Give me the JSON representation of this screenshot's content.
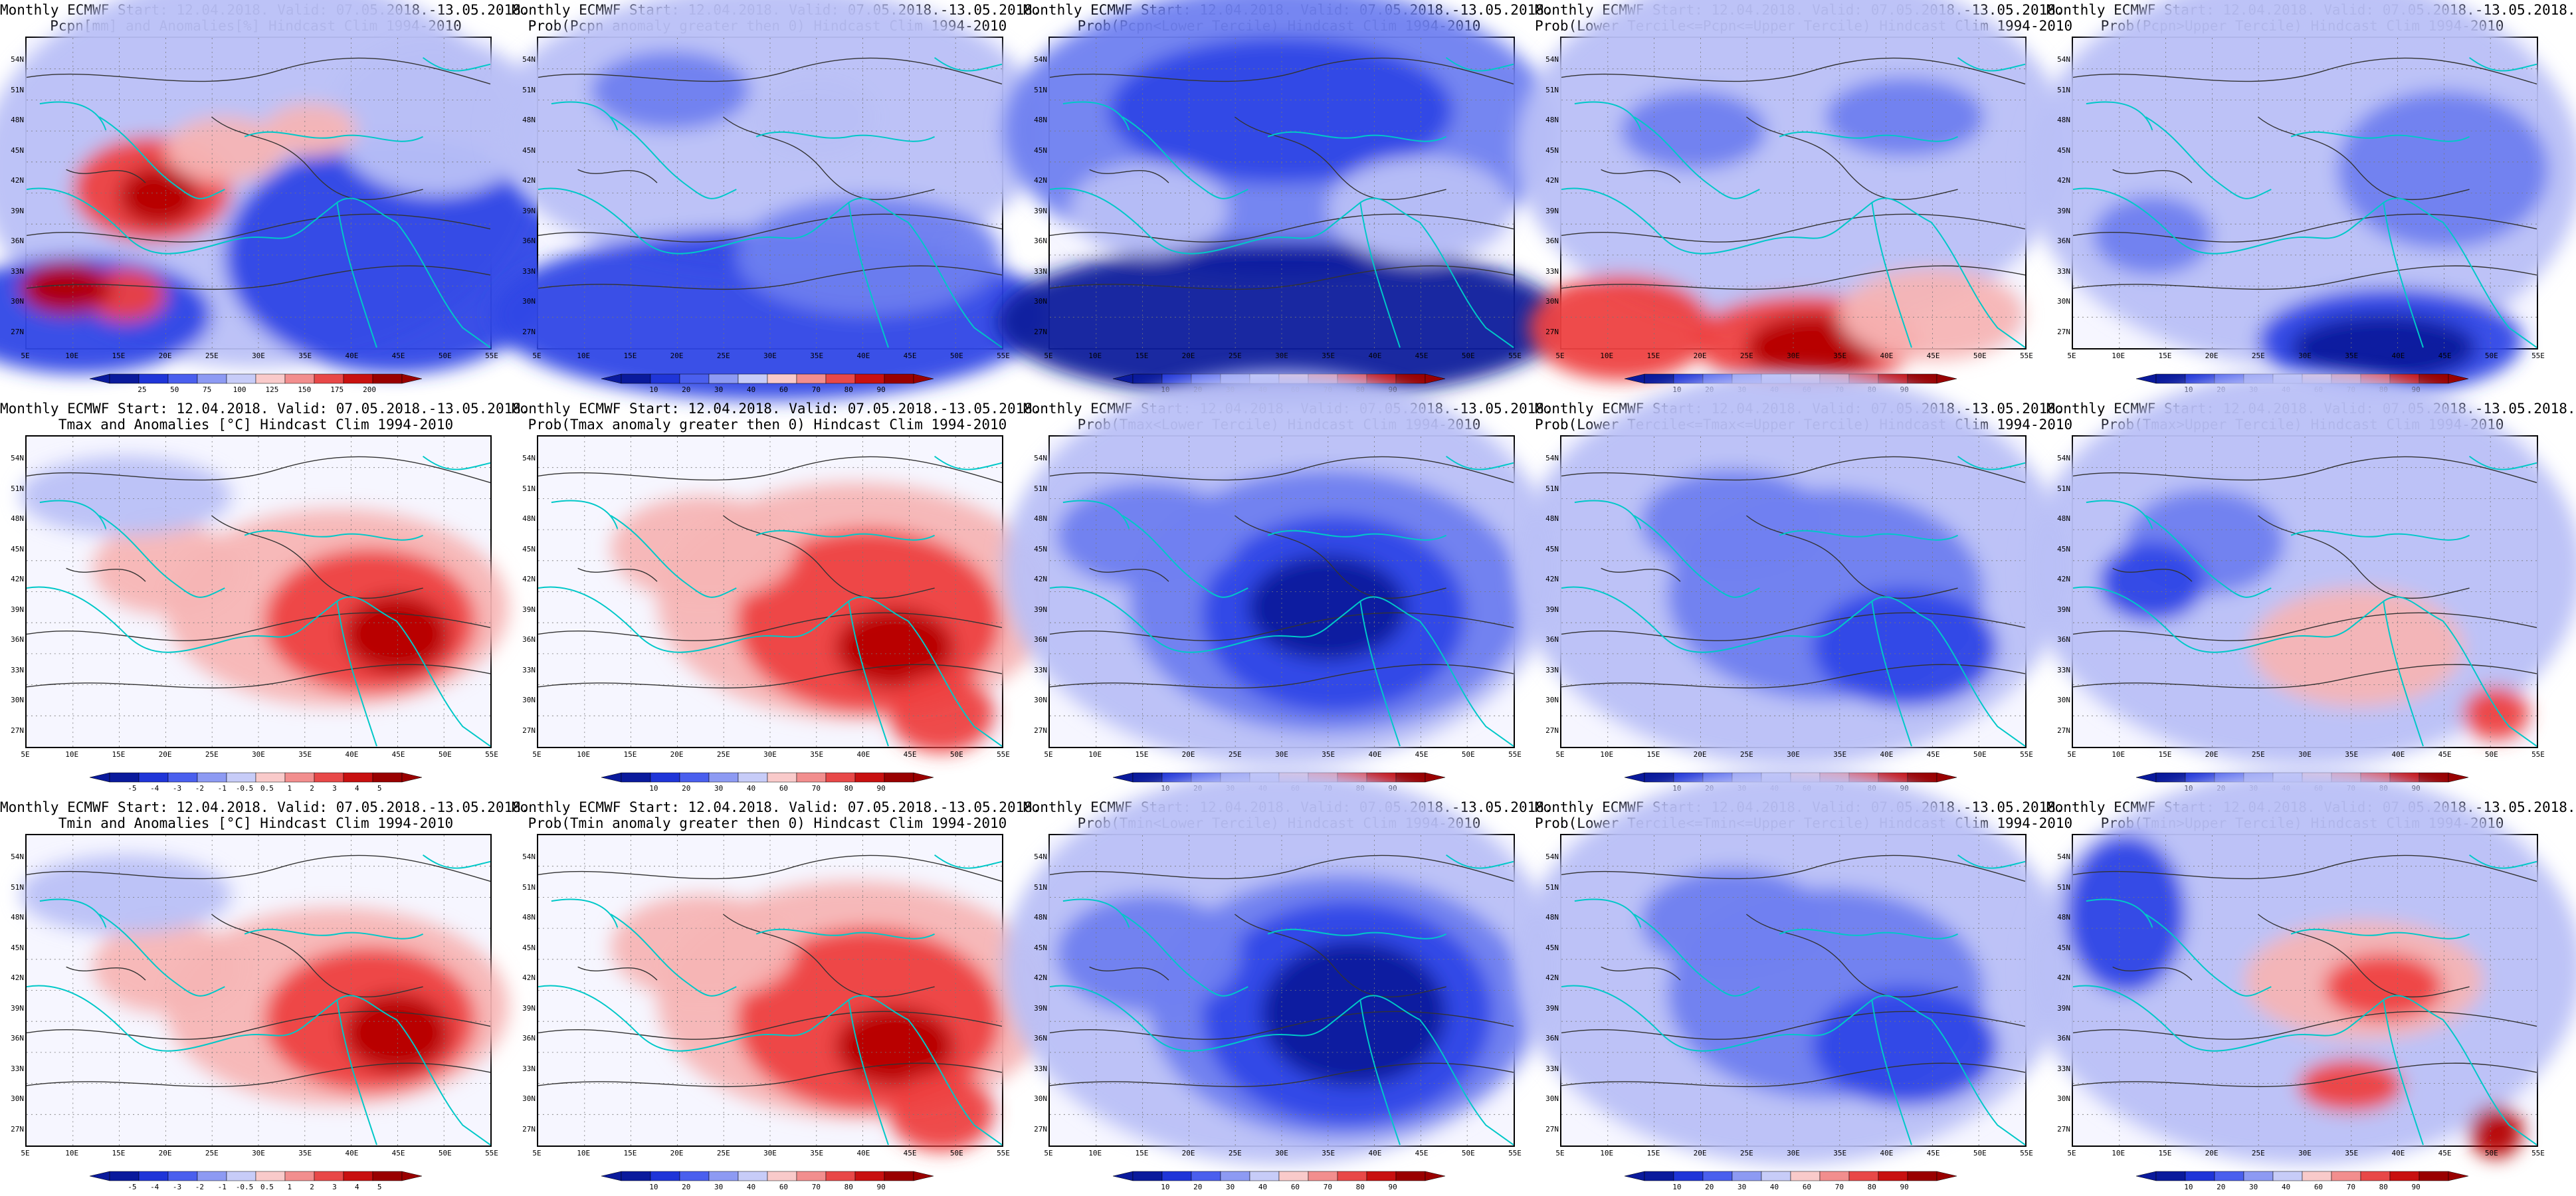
{
  "lat_labels": [
    "54N",
    "51N",
    "48N",
    "45N",
    "42N",
    "39N",
    "36N",
    "33N",
    "30N",
    "27N"
  ],
  "lon_labels": [
    "5E",
    "10E",
    "15E",
    "20E",
    "25E",
    "30E",
    "35E",
    "40E",
    "45E",
    "50E",
    "55E"
  ],
  "colors": {
    "blue_dark": "#0a1a9c",
    "blue": "#2f46e6",
    "blue_mid": "#6f7ff0",
    "blue_light": "#b9c0f7",
    "red_light": "#f7b5b5",
    "red": "#ee4040",
    "red_dark": "#b50000",
    "coast": "#00c8c8",
    "contour": "#333333"
  },
  "scales": {
    "pcpn": [
      "25",
      "50",
      "75",
      "100",
      "125",
      "150",
      "175",
      "200"
    ],
    "prob": [
      "10",
      "20",
      "30",
      "40",
      "60",
      "70",
      "80",
      "90"
    ],
    "temp": [
      "-5",
      "-4",
      "-3",
      "-2",
      "-1",
      "-0.5",
      "0.5",
      "1",
      "2",
      "3",
      "4",
      "5"
    ]
  },
  "panels": [
    {
      "title1": "Monthly ECMWF Start: 12.04.2018. Valid: 07.05.2018.-13.05.2018.",
      "title2": "Pcpn[mm] and Anomalies[%] Hindcast Clim 1994-2010",
      "scale": "pcpn",
      "field": "pcpn_anom"
    },
    {
      "title1": "Monthly ECMWF Start: 12.04.2018. Valid: 07.05.2018.-13.05.2018.",
      "title2": "Prob(Pcpn anomaly greater then 0) Hindcast Clim 1994-2010",
      "scale": "prob",
      "field": "pcpn_pos"
    },
    {
      "title1": "Monthly ECMWF Start: 12.04.2018. Valid: 07.05.2018.-13.05.2018.",
      "title2": "Prob(Pcpn<Lower Tercile) Hindcast Clim 1994-2010",
      "scale": "prob",
      "field": "pcpn_low"
    },
    {
      "title1": "Monthly ECMWF Start: 12.04.2018. Valid: 07.05.2018.-13.05.2018.",
      "title2": "Prob(Lower Tercile<=Pcpn<=Upper Tercile) Hindcast Clim 1994-2010",
      "scale": "prob",
      "field": "pcpn_mid"
    },
    {
      "title1": "Monthly ECMWF Start: 12.04.2018. Valid: 07.05.2018.-13.05.2018.",
      "title2": "Prob(Pcpn>Upper Tercile) Hindcast Clim 1994-2010",
      "scale": "prob",
      "field": "pcpn_up"
    },
    {
      "title1": "Monthly ECMWF Start: 12.04.2018. Valid: 07.05.2018.-13.05.2018.",
      "title2": "Tmax and Anomalies [°C] Hindcast Clim 1994-2010",
      "scale": "temp",
      "field": "t_anom"
    },
    {
      "title1": "Monthly ECMWF Start: 12.04.2018. Valid: 07.05.2018.-13.05.2018.",
      "title2": "Prob(Tmax anomaly greater then 0) Hindcast Clim 1994-2010",
      "scale": "prob",
      "field": "t_pos"
    },
    {
      "title1": "Monthly ECMWF Start: 12.04.2018. Valid: 07.05.2018.-13.05.2018.",
      "title2": "Prob(Tmax<Lower Tercile) Hindcast Clim 1994-2010",
      "scale": "prob",
      "field": "t_low"
    },
    {
      "title1": "Monthly ECMWF Start: 12.04.2018. Valid: 07.05.2018.-13.05.2018.",
      "title2": "Prob(Lower Tercile<=Tmax<=Upper Tercile) Hindcast Clim 1994-2010",
      "scale": "prob",
      "field": "t_mid"
    },
    {
      "title1": "Monthly ECMWF Start: 12.04.2018. Valid: 07.05.2018.-13.05.2018.",
      "title2": "Prob(Tmax>Upper Tercile) Hindcast Clim 1994-2010",
      "scale": "prob",
      "field": "t_up"
    },
    {
      "title1": "Monthly ECMWF Start: 12.04.2018. Valid: 07.05.2018.-13.05.2018.",
      "title2": "Tmin and Anomalies [°C] Hindcast Clim 1994-2010",
      "scale": "temp",
      "field": "t_anom"
    },
    {
      "title1": "Monthly ECMWF Start: 12.04.2018. Valid: 07.05.2018.-13.05.2018.",
      "title2": "Prob(Tmin anomaly greater then 0) Hindcast Clim 1994-2010",
      "scale": "prob",
      "field": "t_pos"
    },
    {
      "title1": "Monthly ECMWF Start: 12.04.2018. Valid: 07.05.2018.-13.05.2018.",
      "title2": "Prob(Tmin<Lower Tercile) Hindcast Clim 1994-2010",
      "scale": "prob",
      "field": "t_low_dark"
    },
    {
      "title1": "Monthly ECMWF Start: 12.04.2018. Valid: 07.05.2018.-13.05.2018.",
      "title2": "Prob(Lower Tercile<=Tmin<=Upper Tercile) Hindcast Clim 1994-2010",
      "scale": "prob",
      "field": "t_mid"
    },
    {
      "title1": "Monthly ECMWF Start: 12.04.2018. Valid: 07.05.2018.-13.05.2018.",
      "title2": "Prob(Tmin>Upper Tercile) Hindcast Clim 1994-2010",
      "scale": "prob",
      "field": "t_up_red"
    }
  ]
}
